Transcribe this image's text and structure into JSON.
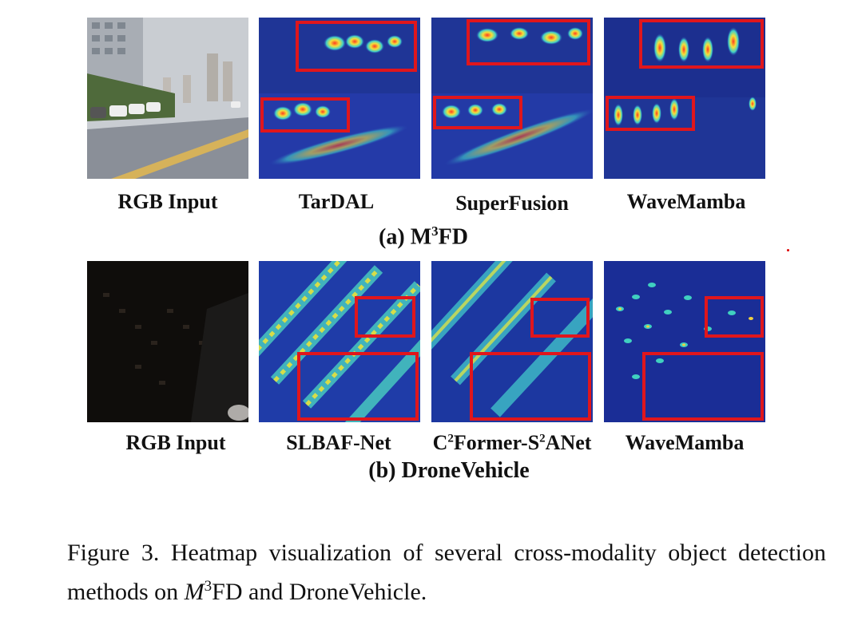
{
  "row_a": {
    "labels": [
      "RGB Input",
      "TarDAL",
      "SuperFusion",
      "WaveMamba"
    ],
    "subtitle_prefix": "(a) M",
    "subtitle_sup": "3",
    "subtitle_suffix": "FD"
  },
  "row_b": {
    "labels": [
      "RGB Input",
      "SLBAF-Net"
    ],
    "label3": {
      "p1": "C",
      "s1": "2",
      "p2": "Former-S",
      "s2": "2",
      "p3": "ANet"
    },
    "label4": "WaveMamba",
    "subtitle": "(b) DroneVehicle"
  },
  "caption": {
    "prefix": "Figure 3.  Heatmap visualization of several cross-modality object detection methods on ",
    "math_main": "M",
    "math_sup": "3",
    "suffix": "FD and DroneVehicle."
  },
  "colors": {
    "highlight_box": "#e0161c",
    "heatmap_base": "#1a2a8c"
  }
}
